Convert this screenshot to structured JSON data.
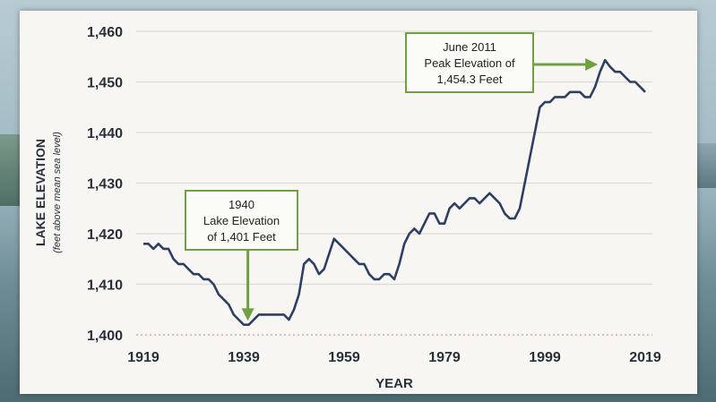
{
  "chart_data": {
    "type": "line",
    "xlabel": "YEAR",
    "ylabel": "LAKE ELEVATION",
    "ylabel_sub": "(feet above mean sea level)",
    "xlim": [
      1919,
      2019
    ],
    "ylim": [
      1400,
      1460
    ],
    "x_ticks": [
      1919,
      1939,
      1959,
      1979,
      1999,
      2019
    ],
    "y_ticks": [
      1400,
      1410,
      1420,
      1430,
      1440,
      1450,
      1460
    ],
    "y_tick_labels": [
      "1,400",
      "1,410",
      "1,420",
      "1,430",
      "1,440",
      "1,450",
      "1,460"
    ],
    "grid": true,
    "line_color": "#2f3f63",
    "box_color": "#6fa142",
    "arrow_color": "#6fa142",
    "series": [
      {
        "x": [
          1919,
          1920,
          1921,
          1922,
          1923,
          1924,
          1925,
          1926,
          1927,
          1928,
          1929,
          1930,
          1931,
          1932,
          1933,
          1934,
          1935,
          1936,
          1937,
          1938,
          1939,
          1940,
          1941,
          1942,
          1943,
          1944,
          1945,
          1946,
          1947,
          1948,
          1949,
          1950,
          1951,
          1952,
          1953,
          1954,
          1955,
          1956,
          1957,
          1958,
          1959,
          1960,
          1961,
          1962,
          1963,
          1964,
          1965,
          1966,
          1967,
          1968,
          1969,
          1970,
          1971,
          1972,
          1973,
          1974,
          1975,
          1976,
          1977,
          1978,
          1979,
          1980,
          1981,
          1982,
          1983,
          1984,
          1985,
          1986,
          1987,
          1988,
          1989,
          1990,
          1991,
          1992,
          1993,
          1994,
          1995,
          1996,
          1997,
          1998,
          1999,
          2000,
          2001,
          2002,
          2003,
          2004,
          2005,
          2006,
          2007,
          2008,
          2009,
          2010,
          2011,
          2012,
          2013,
          2014,
          2015,
          2016,
          2017,
          2018,
          2019
        ],
        "y": [
          1418,
          1418,
          1417,
          1418,
          1417,
          1417,
          1415,
          1414,
          1414,
          1413,
          1412,
          1412,
          1411,
          1411,
          1410,
          1408,
          1407,
          1406,
          1404,
          1403,
          1402,
          1402,
          1403,
          1404,
          1404,
          1404,
          1404,
          1404,
          1404,
          1403,
          1405,
          1408,
          1414,
          1415,
          1414,
          1412,
          1413,
          1416,
          1419,
          1418,
          1417,
          1416,
          1415,
          1414,
          1414,
          1412,
          1411,
          1411,
          1412,
          1412,
          1411,
          1414,
          1418,
          1420,
          1421,
          1420,
          1422,
          1424,
          1424,
          1422,
          1422,
          1425,
          1426,
          1425,
          1426,
          1427,
          1427,
          1426,
          1427,
          1428,
          1427,
          1426,
          1424,
          1423,
          1423,
          1425,
          1430,
          1435,
          1440,
          1445,
          1446,
          1446,
          1447,
          1447,
          1447,
          1448,
          1448,
          1448,
          1447,
          1447,
          1449,
          1452,
          1454.3,
          1453,
          1452,
          1452,
          1451,
          1450,
          1450,
          1449,
          1448
        ]
      }
    ],
    "annotations": [
      {
        "lines": [
          "1940",
          "Lake Elevation",
          "of 1,401 Feet"
        ],
        "x": 1940,
        "y": 1401,
        "arrow": "down"
      },
      {
        "lines": [
          "June 2011",
          "Peak Elevation of",
          "1,454.3 Feet"
        ],
        "x": 2011,
        "y": 1454.3,
        "arrow": "right"
      }
    ]
  }
}
